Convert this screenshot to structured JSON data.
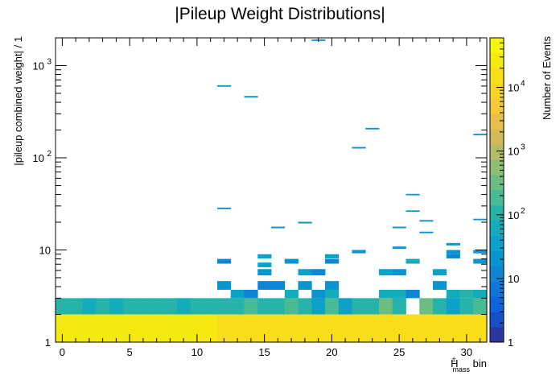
{
  "chart_data": {
    "type": "heatmap",
    "title": "|Pileup Weight Distributions|",
    "xlabel_main": "H",
    "xlabel_sup": "±",
    "xlabel_sub": "mass",
    "xlabel_suffix": " bin",
    "ylabel": "|pileup combined weight| / 1",
    "zlabel": "Number of Events",
    "x_range": [
      -0.5,
      31.5
    ],
    "y_range": [
      1,
      2000
    ],
    "y_scale": "log",
    "z_range": [
      1,
      60000
    ],
    "z_scale": "log",
    "x_ticks": [
      0,
      5,
      10,
      15,
      20,
      25,
      30
    ],
    "x_tick_labels": [
      "0",
      "5",
      "10",
      "15",
      "20",
      "25",
      "30"
    ],
    "y_tick_labels": [
      {
        "value": 1,
        "label": "1"
      },
      {
        "value": 10,
        "label": "10"
      },
      {
        "value": 100,
        "label": "10",
        "exp": "2"
      },
      {
        "value": 1000,
        "label": "10",
        "exp": "3"
      }
    ],
    "z_tick_labels": [
      {
        "value": 1,
        "label": "1"
      },
      {
        "value": 10,
        "label": "10"
      },
      {
        "value": 100,
        "label": "10",
        "exp": "2"
      },
      {
        "value": 1000,
        "label": "10",
        "exp": "3"
      },
      {
        "value": 10000,
        "label": "10",
        "exp": "4"
      }
    ],
    "grid": false,
    "legend": "color bar on the right",
    "cells": [
      {
        "x": 0,
        "y": [
          1,
          2
        ],
        "z": 30000
      },
      {
        "x": 1,
        "y": [
          1,
          2
        ],
        "z": 30000
      },
      {
        "x": 2,
        "y": [
          1,
          2
        ],
        "z": 30000
      },
      {
        "x": 3,
        "y": [
          1,
          2
        ],
        "z": 30000
      },
      {
        "x": 4,
        "y": [
          1,
          2
        ],
        "z": 30000
      },
      {
        "x": 5,
        "y": [
          1,
          2
        ],
        "z": 30000
      },
      {
        "x": 6,
        "y": [
          1,
          2
        ],
        "z": 30000
      },
      {
        "x": 7,
        "y": [
          1,
          2
        ],
        "z": 30000
      },
      {
        "x": 8,
        "y": [
          1,
          2
        ],
        "z": 30000
      },
      {
        "x": 9,
        "y": [
          1,
          2
        ],
        "z": 30000
      },
      {
        "x": 10,
        "y": [
          1,
          2
        ],
        "z": 30000
      },
      {
        "x": 11,
        "y": [
          1,
          2
        ],
        "z": 30000
      },
      {
        "x": 12,
        "y": [
          1,
          2
        ],
        "z": 15000
      },
      {
        "x": 13,
        "y": [
          1,
          2
        ],
        "z": 15000
      },
      {
        "x": 14,
        "y": [
          1,
          2
        ],
        "z": 15000
      },
      {
        "x": 15,
        "y": [
          1,
          2
        ],
        "z": 15000
      },
      {
        "x": 16,
        "y": [
          1,
          2
        ],
        "z": 15000
      },
      {
        "x": 17,
        "y": [
          1,
          2
        ],
        "z": 15000
      },
      {
        "x": 18,
        "y": [
          1,
          2
        ],
        "z": 15000
      },
      {
        "x": 19,
        "y": [
          1,
          2
        ],
        "z": 15000
      },
      {
        "x": 20,
        "y": [
          1,
          2
        ],
        "z": 15000
      },
      {
        "x": 21,
        "y": [
          1,
          2
        ],
        "z": 15000
      },
      {
        "x": 22,
        "y": [
          1,
          2
        ],
        "z": 15000
      },
      {
        "x": 23,
        "y": [
          1,
          2
        ],
        "z": 15000
      },
      {
        "x": 24,
        "y": [
          1,
          2
        ],
        "z": 15000
      },
      {
        "x": 25,
        "y": [
          1,
          2
        ],
        "z": 15000
      },
      {
        "x": 26,
        "y": [
          1,
          2
        ],
        "z": 15000
      },
      {
        "x": 27,
        "y": [
          1,
          2
        ],
        "z": 15000
      },
      {
        "x": 28,
        "y": [
          1,
          2
        ],
        "z": 15000
      },
      {
        "x": 29,
        "y": [
          1,
          2
        ],
        "z": 15000
      },
      {
        "x": 30,
        "y": [
          1,
          2
        ],
        "z": 15000
      },
      {
        "x": 31,
        "y": [
          1,
          2
        ],
        "z": 15000
      },
      {
        "x": 0,
        "y": [
          2,
          3
        ],
        "z": 100
      },
      {
        "x": 1,
        "y": [
          2,
          3
        ],
        "z": 100
      },
      {
        "x": 2,
        "y": [
          2,
          3
        ],
        "z": 80
      },
      {
        "x": 3,
        "y": [
          2,
          3
        ],
        "z": 100
      },
      {
        "x": 4,
        "y": [
          2,
          3
        ],
        "z": 80
      },
      {
        "x": 5,
        "y": [
          2,
          3
        ],
        "z": 100
      },
      {
        "x": 6,
        "y": [
          2,
          3
        ],
        "z": 100
      },
      {
        "x": 7,
        "y": [
          2,
          3
        ],
        "z": 100
      },
      {
        "x": 8,
        "y": [
          2,
          3
        ],
        "z": 100
      },
      {
        "x": 9,
        "y": [
          2,
          3
        ],
        "z": 80
      },
      {
        "x": 10,
        "y": [
          2,
          3
        ],
        "z": 100
      },
      {
        "x": 11,
        "y": [
          2,
          3
        ],
        "z": 100
      },
      {
        "x": 12,
        "y": [
          2,
          3
        ],
        "z": 100
      },
      {
        "x": 13,
        "y": [
          2,
          3
        ],
        "z": 100
      },
      {
        "x": 14,
        "y": [
          2,
          3
        ],
        "z": 150
      },
      {
        "x": 15,
        "y": [
          2,
          3
        ],
        "z": 100
      },
      {
        "x": 16,
        "y": [
          2,
          3
        ],
        "z": 100
      },
      {
        "x": 17,
        "y": [
          2,
          3
        ],
        "z": 150
      },
      {
        "x": 18,
        "y": [
          2,
          3
        ],
        "z": 100
      },
      {
        "x": 19,
        "y": [
          2,
          3
        ],
        "z": 30
      },
      {
        "x": 20,
        "y": [
          2,
          3
        ],
        "z": 200
      },
      {
        "x": 21,
        "y": [
          2,
          3
        ],
        "z": 30
      },
      {
        "x": 22,
        "y": [
          2,
          3
        ],
        "z": 100
      },
      {
        "x": 23,
        "y": [
          2,
          3
        ],
        "z": 100
      },
      {
        "x": 24,
        "y": [
          2,
          3
        ],
        "z": 250
      },
      {
        "x": 25,
        "y": [
          2,
          3
        ],
        "z": 100
      },
      {
        "x": 27,
        "y": [
          2,
          3
        ],
        "z": 250
      },
      {
        "x": 28,
        "y": [
          2,
          3
        ],
        "z": 100
      },
      {
        "x": 29,
        "y": [
          2,
          3
        ],
        "z": 30
      },
      {
        "x": 30,
        "y": [
          2,
          3
        ],
        "z": 100
      },
      {
        "x": 31,
        "y": [
          2,
          3
        ],
        "z": 150
      },
      {
        "x": 13,
        "y": [
          3,
          3.7
        ],
        "z": 40
      },
      {
        "x": 14,
        "y": [
          3,
          3.7
        ],
        "z": 15
      },
      {
        "x": 17,
        "y": [
          3,
          3.7
        ],
        "z": 60
      },
      {
        "x": 19,
        "y": [
          3,
          3.7
        ],
        "z": 25
      },
      {
        "x": 20,
        "y": [
          3,
          3.7
        ],
        "z": 60
      },
      {
        "x": 24,
        "y": [
          3,
          3.7
        ],
        "z": 60
      },
      {
        "x": 25,
        "y": [
          3,
          3.7
        ],
        "z": 60
      },
      {
        "x": 26,
        "y": [
          3,
          3.7
        ],
        "z": 15
      },
      {
        "x": 29,
        "y": [
          3,
          3.7
        ],
        "z": 60
      },
      {
        "x": 30,
        "y": [
          3,
          3.7
        ],
        "z": 100
      },
      {
        "x": 31,
        "y": [
          3,
          3.7
        ],
        "z": 60
      },
      {
        "x": 12,
        "y": [
          3.7,
          4.6
        ],
        "z": 20
      },
      {
        "x": 15,
        "y": [
          3.7,
          4.6
        ],
        "z": 10
      },
      {
        "x": 16,
        "y": [
          3.7,
          4.6
        ],
        "z": 10
      },
      {
        "x": 18,
        "y": [
          3.7,
          4.6
        ],
        "z": 20
      },
      {
        "x": 20,
        "y": [
          3.7,
          4.6
        ],
        "z": 25
      },
      {
        "x": 28,
        "y": [
          3.7,
          4.6
        ],
        "z": 25
      },
      {
        "x": 15,
        "y": [
          5.3,
          6.2
        ],
        "z": 25
      },
      {
        "x": 18,
        "y": [
          5.3,
          6.2
        ],
        "z": 30
      },
      {
        "x": 19,
        "y": [
          5.3,
          6.2
        ],
        "z": 15
      },
      {
        "x": 24,
        "y": [
          5.3,
          6.2
        ],
        "z": 40
      },
      {
        "x": 25,
        "y": [
          5.3,
          6.2
        ],
        "z": 20
      },
      {
        "x": 28,
        "y": [
          5.3,
          6.2
        ],
        "z": 40
      },
      {
        "x": 15,
        "y": [
          6.5,
          7.3
        ],
        "z": 40
      },
      {
        "x": 12,
        "y": [
          7.1,
          8
        ],
        "z": 15
      },
      {
        "x": 17,
        "y": [
          7.1,
          8
        ],
        "z": 20
      },
      {
        "x": 20,
        "y": [
          7.1,
          8
        ],
        "z": 15
      },
      {
        "x": 26,
        "y": [
          7.1,
          8
        ],
        "z": 60
      },
      {
        "x": 31,
        "y": [
          7.1,
          8
        ],
        "z": 20
      },
      {
        "x": 15,
        "y": [
          8.1,
          9
        ],
        "z": 40
      },
      {
        "x": 20,
        "y": [
          8.1,
          9
        ],
        "z": 40
      },
      {
        "x": 29,
        "y": [
          8.1,
          9
        ],
        "z": 15
      },
      {
        "x": 22,
        "y": [
          9.2,
          10
        ],
        "z": 25
      },
      {
        "x": 29,
        "y": [
          9,
          10
        ],
        "z": 25
      },
      {
        "x": 31,
        "y": [
          9.2,
          10
        ],
        "z": 25
      },
      {
        "x": 25,
        "y": [
          10.3,
          10.9
        ],
        "z": 25
      },
      {
        "x": 29,
        "y": [
          11.2,
          11.9
        ],
        "z": 20
      },
      {
        "x": 27,
        "y": [
          15.2,
          15.8
        ],
        "z": 25
      },
      {
        "x": 16,
        "y": [
          17.2,
          17.9
        ],
        "z": 20
      },
      {
        "x": 25,
        "y": [
          17.2,
          17.9
        ],
        "z": 20
      },
      {
        "x": 18,
        "y": [
          19.4,
          20.2
        ],
        "z": 20
      },
      {
        "x": 27,
        "y": [
          20.3,
          21.1
        ],
        "z": 20
      },
      {
        "x": 31,
        "y": [
          21,
          21.8
        ],
        "z": 20
      },
      {
        "x": 26,
        "y": [
          26,
          26.9
        ],
        "z": 25
      },
      {
        "x": 12,
        "y": [
          27.7,
          28.8
        ],
        "z": 20
      },
      {
        "x": 26,
        "y": [
          39.2,
          40.6
        ],
        "z": 25
      },
      {
        "x": 22,
        "y": [
          126,
          131
        ],
        "z": 20
      },
      {
        "x": 31,
        "y": [
          175,
          182
        ],
        "z": 25
      },
      {
        "x": 23,
        "y": [
          203,
          211
        ],
        "z": 25
      },
      {
        "x": 14,
        "y": [
          450,
          468
        ],
        "z": 20
      },
      {
        "x": 12,
        "y": [
          590,
          612
        ],
        "z": 20
      },
      {
        "x": 19,
        "y": [
          1850,
          1920
        ],
        "z": 20
      }
    ]
  }
}
